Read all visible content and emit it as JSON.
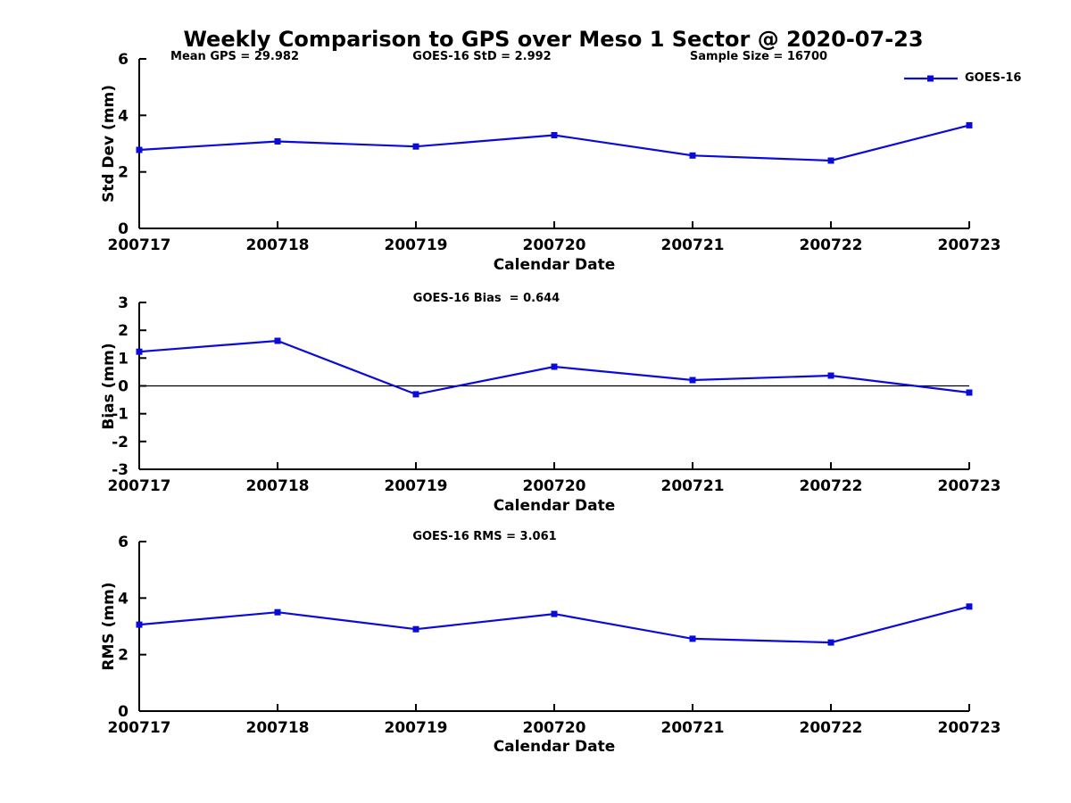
{
  "title": "Weekly Comparison to GPS over Meso 1 Sector @ 2020-07-23",
  "legend": {
    "label": "GOES-16"
  },
  "colors": {
    "series": "#0b0bd9",
    "axis": "#000000",
    "text": "#000000",
    "background": "#ffffff"
  },
  "annotations": [
    {
      "text": "Mean GPS = 29.982"
    },
    {
      "text": "GOES-16 StD = 2.992"
    },
    {
      "text": "Sample Size = 16700"
    },
    {
      "text": "GOES-16 Bias  = 0.644"
    },
    {
      "text": "GOES-16 RMS = 3.061"
    }
  ],
  "chart_data": [
    {
      "type": "line",
      "panel": "std-dev",
      "categories": [
        "200717",
        "200718",
        "200719",
        "200720",
        "200721",
        "200722",
        "200723"
      ],
      "series": [
        {
          "name": "GOES-16",
          "values": [
            2.78,
            3.08,
            2.9,
            3.3,
            2.58,
            2.4,
            3.65
          ]
        }
      ],
      "xlabel": "Calendar Date",
      "ylabel": "Std Dev (mm)",
      "ylim": [
        0,
        6
      ],
      "yticks": [
        0,
        2,
        4,
        6
      ],
      "zero_line": false,
      "grid": false,
      "legend_position": "top-right",
      "marker": "square",
      "annotation": "GOES-16 StD = 2.992"
    },
    {
      "type": "line",
      "panel": "bias",
      "categories": [
        "200717",
        "200718",
        "200719",
        "200720",
        "200721",
        "200722",
        "200723"
      ],
      "series": [
        {
          "name": "GOES-16",
          "values": [
            1.23,
            1.62,
            -0.3,
            0.69,
            0.21,
            0.37,
            -0.24
          ]
        }
      ],
      "xlabel": "Calendar Date",
      "ylabel": "Bias (mm)",
      "ylim": [
        -3,
        3
      ],
      "yticks": [
        3,
        2,
        1,
        0,
        -1,
        -2,
        -3
      ],
      "zero_line": true,
      "grid": false,
      "marker": "square",
      "annotation": "GOES-16 Bias  = 0.644"
    },
    {
      "type": "line",
      "panel": "rms",
      "categories": [
        "200717",
        "200718",
        "200719",
        "200720",
        "200721",
        "200722",
        "200723"
      ],
      "series": [
        {
          "name": "GOES-16",
          "values": [
            3.06,
            3.5,
            2.9,
            3.44,
            2.56,
            2.43,
            3.7
          ]
        }
      ],
      "xlabel": "Calendar Date",
      "ylabel": "RMS (mm)",
      "ylim": [
        0,
        6
      ],
      "yticks": [
        0,
        2,
        4,
        6
      ],
      "zero_line": false,
      "grid": false,
      "marker": "square",
      "annotation": "GOES-16 RMS = 3.061"
    }
  ]
}
